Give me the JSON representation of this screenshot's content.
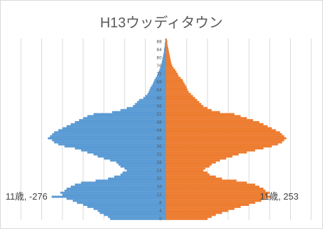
{
  "chart_data": {
    "type": "bar",
    "orientation": "horizontal",
    "layout": "population-pyramid",
    "title": "H13ウッディタウン",
    "xlabel": "",
    "ylabel": "",
    "xlim": [
      -360,
      360
    ],
    "grid": true,
    "legend": "none",
    "y_tick_labels": [
      "0",
      "4",
      "8",
      "12",
      "16",
      "20",
      "24",
      "28",
      "32",
      "36",
      "40",
      "44",
      "48",
      "52",
      "56",
      "60",
      "64",
      "68",
      "72",
      "76",
      "80",
      "84",
      "88"
    ],
    "ages": [
      0,
      1,
      2,
      3,
      4,
      5,
      6,
      7,
      8,
      9,
      10,
      11,
      12,
      13,
      14,
      15,
      16,
      17,
      18,
      19,
      20,
      21,
      22,
      23,
      24,
      25,
      26,
      27,
      28,
      29,
      30,
      31,
      32,
      33,
      34,
      35,
      36,
      37,
      38,
      39,
      40,
      41,
      42,
      43,
      44,
      45,
      46,
      47,
      48,
      49,
      50,
      51,
      52,
      53,
      54,
      55,
      56,
      57,
      58,
      59,
      60,
      61,
      62,
      63,
      64,
      65,
      66,
      67,
      68,
      69,
      70,
      71,
      72,
      73,
      74,
      75,
      76,
      77,
      78,
      79,
      80,
      81,
      82,
      83,
      84,
      85,
      86,
      87,
      88,
      89
    ],
    "series": [
      {
        "color": "#5b9bd5",
        "values": [
          -135,
          -140,
          -150,
          -160,
          -165,
          -175,
          -190,
          -200,
          -215,
          -225,
          -240,
          -276,
          -250,
          -255,
          -245,
          -240,
          -230,
          -220,
          -205,
          -170,
          -140,
          -125,
          -110,
          -105,
          -95,
          -100,
          -110,
          -115,
          -120,
          -135,
          -150,
          -165,
          -175,
          -190,
          -205,
          -220,
          -245,
          -260,
          -270,
          -275,
          -285,
          -280,
          -275,
          -270,
          -260,
          -250,
          -240,
          -230,
          -220,
          -210,
          -200,
          -190,
          -175,
          -130,
          -110,
          -95,
          -80,
          -75,
          -70,
          -65,
          -55,
          -50,
          -45,
          -42,
          -40,
          -38,
          -35,
          -32,
          -30,
          -28,
          -25,
          -22,
          -20,
          -18,
          -16,
          -14,
          -12,
          -11,
          -10,
          -9,
          -8,
          -7,
          -6,
          -5,
          -5,
          -4,
          -3,
          -3,
          -2,
          -2
        ]
      },
      {
        "color": "#ed7d31",
        "values": [
          100,
          110,
          120,
          135,
          150,
          165,
          180,
          200,
          215,
          230,
          240,
          253,
          245,
          250,
          240,
          235,
          225,
          215,
          195,
          170,
          135,
          120,
          105,
          100,
          90,
          95,
          105,
          110,
          120,
          130,
          145,
          160,
          175,
          195,
          215,
          235,
          255,
          270,
          280,
          285,
          290,
          285,
          280,
          275,
          265,
          255,
          245,
          235,
          225,
          210,
          195,
          180,
          165,
          130,
          110,
          100,
          90,
          85,
          80,
          75,
          70,
          65,
          60,
          55,
          52,
          50,
          48,
          45,
          42,
          40,
          35,
          30,
          28,
          25,
          22,
          18,
          15,
          13,
          12,
          11,
          10,
          9,
          8,
          7,
          6,
          5,
          4,
          3,
          3,
          2
        ]
      }
    ],
    "annotations": [
      {
        "text": "11歳, -276",
        "age": 11,
        "value": -276
      },
      {
        "text": "11歳, 253",
        "age": 11,
        "value": 253
      }
    ]
  }
}
